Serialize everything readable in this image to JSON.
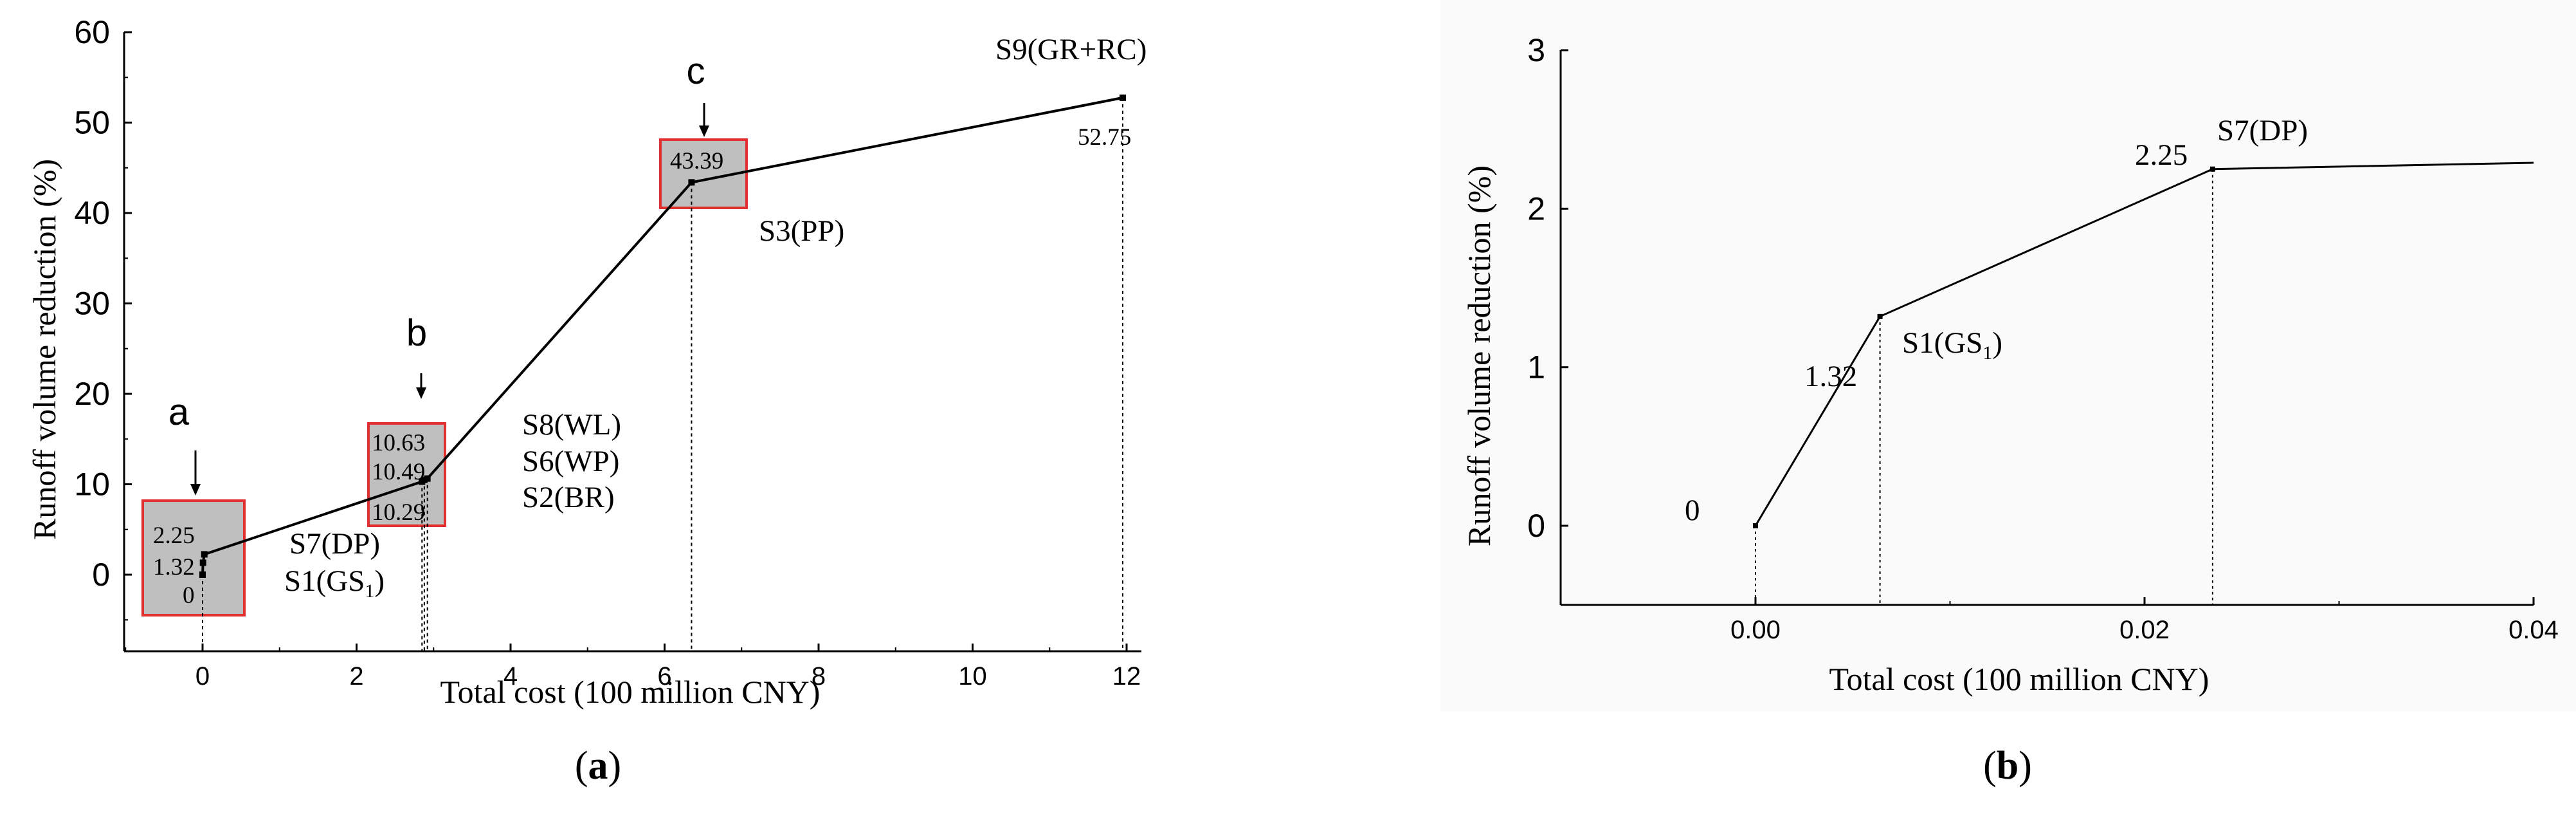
{
  "chart_data": [
    {
      "panel": "a",
      "type": "line",
      "xlabel": "Total cost (100 million CNY)",
      "ylabel": "Runoff volume reduction (%)",
      "xlim": [
        -1,
        13
      ],
      "ylim": [
        -5,
        60
      ],
      "xticks": [
        0,
        2,
        4,
        6,
        8,
        10,
        12
      ],
      "yticks": [
        0,
        10,
        20,
        30,
        40,
        50,
        60
      ],
      "grid": false,
      "points": [
        {
          "x": 0,
          "y": 0
        },
        {
          "x": 0.006,
          "y": 1.32
        },
        {
          "x": 0.023,
          "y": 2.25
        },
        {
          "x": 2.85,
          "y": 10.29
        },
        {
          "x": 2.88,
          "y": 10.49
        },
        {
          "x": 2.92,
          "y": 10.63
        },
        {
          "x": 6.35,
          "y": 43.39
        },
        {
          "x": 11.95,
          "y": 52.75
        }
      ],
      "value_labels": [
        "2.25",
        "1.32",
        "0",
        "10.63",
        "10.49",
        "10.29",
        "43.39",
        "52.75"
      ],
      "scenario_labels": [
        "S7(DP)",
        "S1(GS",
        "S8(WL)",
        "S6(WP)",
        "S2(BR)",
        "S3(PP)",
        "S9(GR+RC)"
      ],
      "callouts": [
        "a",
        "b",
        "c"
      ]
    },
    {
      "panel": "b",
      "type": "line",
      "xlabel": "Total cost (100 million CNY)",
      "ylabel": "Runoff volume reduction (%)",
      "xlim": [
        -0.012,
        0.04
      ],
      "ylim": [
        -0.5,
        3
      ],
      "xticks": [
        "0.00",
        "0.02",
        "0.04"
      ],
      "xtick_values": [
        0,
        0.02,
        0.04
      ],
      "yticks": [
        0,
        1,
        2,
        3
      ],
      "grid": false,
      "points": [
        {
          "x": 0,
          "y": 0
        },
        {
          "x": 0.0064,
          "y": 1.32
        },
        {
          "x": 0.0235,
          "y": 2.25
        },
        {
          "x": 0.04,
          "y": 2.29
        }
      ],
      "value_labels": [
        "0",
        "1.32",
        "2.25"
      ],
      "scenario_labels": [
        "S1(GS",
        "S7(DP)"
      ]
    }
  ],
  "panel_labels": [
    "a",
    "b"
  ],
  "subscript": "1",
  "colors": {
    "line": "#000000",
    "highlight_fill": "#bfbfbf",
    "highlight_border": "#e03030",
    "panel_b_bg": "#fafafa"
  }
}
